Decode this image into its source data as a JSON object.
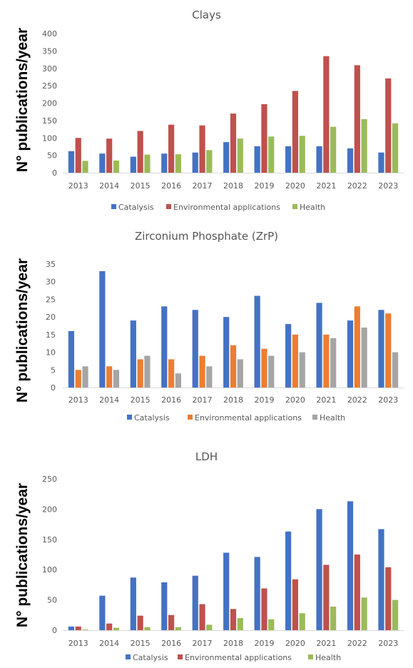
{
  "chart_data": [
    {
      "type": "bar",
      "title": "Clays",
      "ylabel": "N° publications/year",
      "ylim": [
        0,
        400
      ],
      "yticks": [
        "0",
        "50",
        "100",
        "150",
        "200",
        "250",
        "300",
        "350",
        "400"
      ],
      "categories": [
        "2013",
        "2014",
        "2015",
        "2016",
        "2017",
        "2018",
        "2019",
        "2020",
        "2021",
        "2022",
        "2023"
      ],
      "grid": false,
      "legend_position": "bottom",
      "colors": [
        "#4472C4",
        "#C0504D",
        "#9BBB59"
      ],
      "series": [
        {
          "name": "Catalysis",
          "values": [
            62,
            55,
            46,
            55,
            58,
            88,
            76,
            76,
            76,
            70,
            58
          ]
        },
        {
          "name": "Environmental applications",
          "values": [
            100,
            98,
            120,
            138,
            136,
            170,
            197,
            235,
            335,
            309,
            271
          ]
        },
        {
          "name": "Health",
          "values": [
            34,
            35,
            52,
            53,
            65,
            98,
            104,
            106,
            132,
            154,
            142
          ]
        }
      ]
    },
    {
      "type": "bar",
      "title": "Zirconium Phosphate (ZrP)",
      "ylabel": "N° publications/year",
      "ylim": [
        0,
        35
      ],
      "yticks": [
        "0",
        "5",
        "10",
        "15",
        "20",
        "25",
        "30",
        "35"
      ],
      "categories": [
        "2013",
        "2014",
        "2015",
        "2016",
        "2017",
        "2018",
        "2019",
        "2020",
        "2021",
        "2022",
        "2023"
      ],
      "grid": false,
      "legend_position": "bottom",
      "colors": [
        "#4472C4",
        "#ED7D31",
        "#A5A5A5"
      ],
      "series": [
        {
          "name": "Catalysis",
          "values": [
            16,
            33,
            19,
            23,
            22,
            20,
            26,
            18,
            24,
            19,
            22
          ]
        },
        {
          "name": "Environmental applications",
          "values": [
            5,
            6,
            8,
            8,
            9,
            12,
            11,
            15,
            15,
            23,
            21
          ]
        },
        {
          "name": "Health",
          "values": [
            6,
            5,
            9,
            4,
            6,
            8,
            9,
            10,
            14,
            17,
            10
          ]
        }
      ]
    },
    {
      "type": "bar",
      "title": "LDH",
      "ylabel": "N° publications/year",
      "ylim": [
        0,
        250
      ],
      "yticks": [
        "0",
        "50",
        "100",
        "150",
        "200",
        "250"
      ],
      "categories": [
        "2013",
        "2014",
        "2015",
        "2016",
        "2017",
        "2018",
        "2019",
        "2020",
        "2021",
        "2022",
        "2023"
      ],
      "grid": false,
      "legend_position": "bottom",
      "colors": [
        "#4472C4",
        "#C0504D",
        "#9BBB59"
      ],
      "series": [
        {
          "name": "Catalysis",
          "values": [
            6,
            57,
            87,
            79,
            90,
            128,
            121,
            163,
            200,
            213,
            167
          ]
        },
        {
          "name": "Environmental applications",
          "values": [
            6,
            11,
            24,
            25,
            43,
            35,
            69,
            84,
            108,
            125,
            104
          ]
        },
        {
          "name": "Health",
          "values": [
            1,
            4,
            5,
            5,
            9,
            20,
            18,
            28,
            39,
            54,
            50
          ]
        }
      ]
    }
  ]
}
